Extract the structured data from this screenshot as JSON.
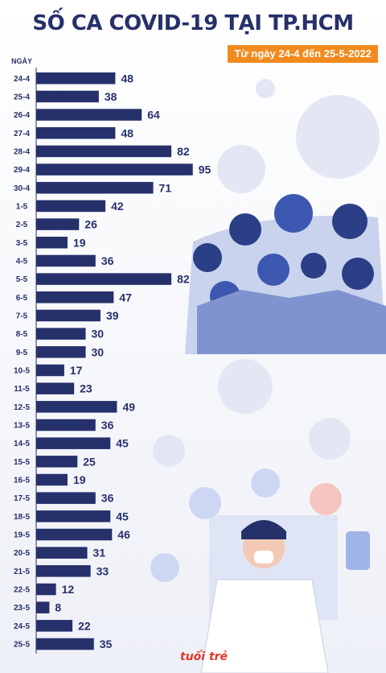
{
  "title": "SỐ CA COVID-19 TẠI TP.HCM",
  "subtitle": "Từ ngày 24-4 đến 25-5-2022",
  "logo": "tuổi trẻ",
  "colors": {
    "bar": "#26306b",
    "accent": "#f28a1e",
    "virus": "#dfe3f2"
  },
  "chart_data": {
    "type": "bar",
    "orientation": "horizontal",
    "category_axis_label": "NGÀY",
    "categories": [
      "24-4",
      "25-4",
      "26-4",
      "27-4",
      "28-4",
      "29-4",
      "30-4",
      "1-5",
      "2-5",
      "3-5",
      "4-5",
      "5-5",
      "6-5",
      "7-5",
      "8-5",
      "9-5",
      "10-5",
      "11-5",
      "12-5",
      "13-5",
      "14-5",
      "15-5",
      "16-5",
      "17-5",
      "18-5",
      "19-5",
      "20-5",
      "21-5",
      "22-5",
      "23-5",
      "24-5",
      "25-5"
    ],
    "values": [
      48,
      38,
      64,
      48,
      82,
      95,
      71,
      42,
      26,
      19,
      36,
      82,
      47,
      39,
      30,
      30,
      17,
      23,
      49,
      36,
      45,
      25,
      19,
      36,
      45,
      46,
      31,
      33,
      12,
      8,
      22,
      35
    ],
    "title": "SỐ CA COVID-19 TẠI TP.HCM",
    "subtitle": "Từ ngày 24-4 đến 25-5-2022",
    "grid": false
  }
}
